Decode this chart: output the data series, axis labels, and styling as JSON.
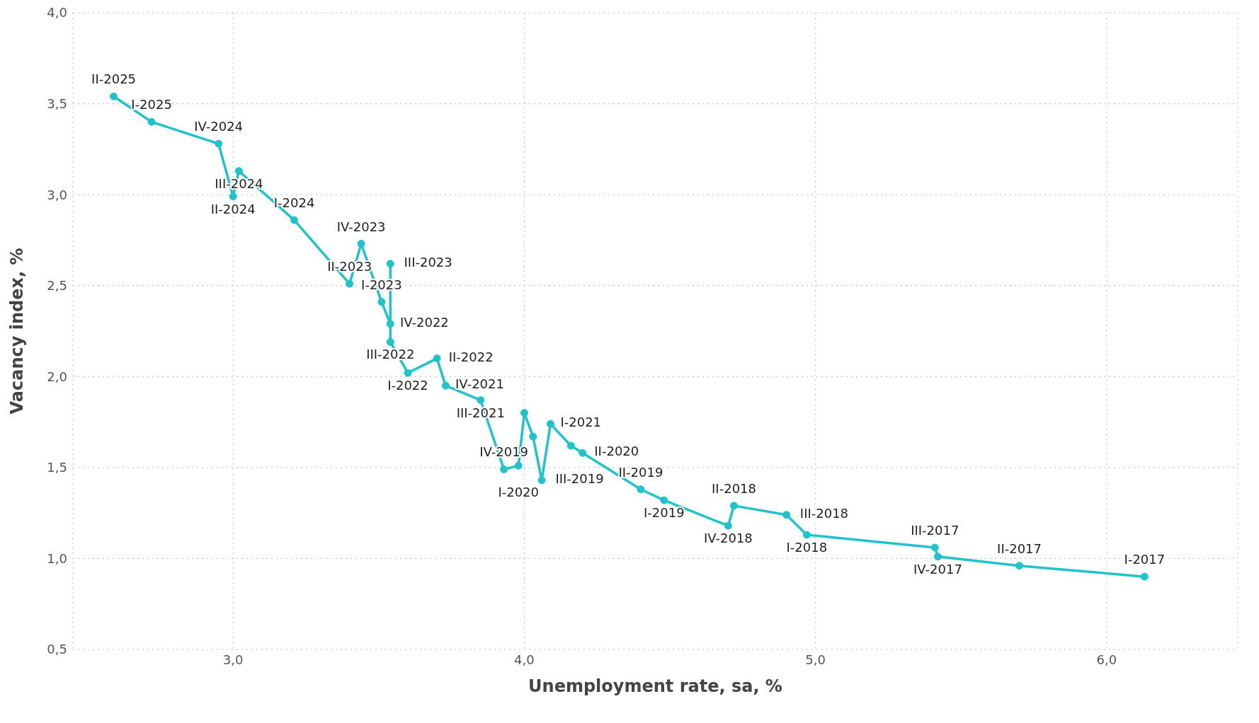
{
  "chart_data": {
    "type": "line",
    "xlabel": "Unemployment rate, sa, %",
    "ylabel": "Vacancy index, %",
    "xlim": [
      2.45,
      6.45
    ],
    "xticks": [
      {
        "value": 3,
        "label": "3,0"
      },
      {
        "value": 4,
        "label": "4,0"
      },
      {
        "value": 5,
        "label": "5,0"
      },
      {
        "value": 6,
        "label": "6,0"
      }
    ],
    "ylim": [
      0.5,
      4.0
    ],
    "yticks": [
      {
        "value": 0.5,
        "label": "0,5"
      },
      {
        "value": 1,
        "label": "1,0"
      },
      {
        "value": 1.5,
        "label": "1,5"
      },
      {
        "value": 2,
        "label": "2,0"
      },
      {
        "value": 2.5,
        "label": "2,5"
      },
      {
        "value": 3,
        "label": "3,0"
      },
      {
        "value": 3.5,
        "label": "3,5"
      },
      {
        "value": 4,
        "label": "4,0"
      }
    ],
    "grid": true,
    "marker": "circle",
    "line_style": "solid",
    "series": [
      {
        "color": "#1ec3cb",
        "x": [
          2.59,
          2.72,
          2.95,
          3.0,
          3.02,
          3.21,
          3.4,
          3.44,
          3.51,
          3.54,
          3.54,
          3.54,
          3.6,
          3.7,
          3.73,
          3.85,
          3.93,
          3.98,
          4.0,
          4.03,
          4.06,
          4.09,
          4.16,
          4.2,
          4.4,
          4.48,
          4.7,
          4.72,
          4.9,
          4.97,
          5.41,
          5.42,
          5.7,
          6.13
        ],
        "values": [
          3.54,
          3.4,
          3.28,
          2.99,
          3.13,
          2.86,
          2.51,
          2.73,
          2.41,
          2.29,
          2.62,
          2.19,
          2.02,
          2.1,
          1.95,
          1.87,
          1.49,
          1.51,
          1.8,
          1.67,
          1.43,
          1.74,
          1.62,
          1.58,
          1.38,
          1.32,
          1.18,
          1.29,
          1.24,
          1.13,
          1.06,
          1.01,
          0.96,
          0.9
        ],
        "value_labels": [
          "II-2025",
          "I-2025",
          "IV-2024",
          "II-2024",
          "III-2024",
          "I-2024",
          "II-2023",
          "IV-2023",
          "I-2023",
          "IV-2022",
          "III-2023",
          "III-2022",
          "I-2022",
          "II-2022",
          "IV-2021",
          "III-2021",
          "IV-2019",
          "I-2020",
          null,
          null,
          "III-2019",
          "I-2021",
          null,
          "II-2020",
          "II-2019",
          "I-2019",
          "IV-2018",
          "II-2018",
          "III-2018",
          "I-2018",
          "III-2017",
          "IV-2017",
          "II-2017",
          "I-2017"
        ]
      }
    ]
  }
}
